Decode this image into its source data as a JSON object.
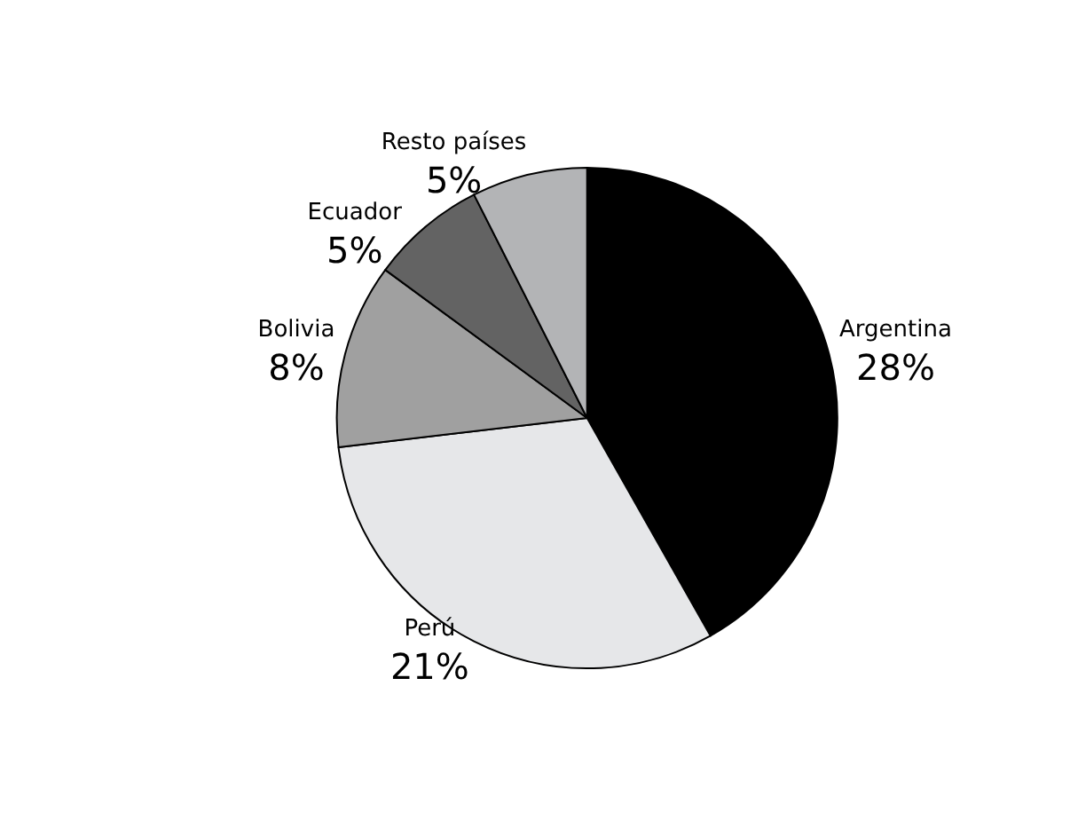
{
  "chart_data": {
    "type": "pie",
    "categories": [
      "Argentina",
      "Perú",
      "Bolivia",
      "Ecuador",
      "Resto países"
    ],
    "values": [
      28,
      21,
      8,
      5,
      5
    ],
    "value_labels": [
      "28%",
      "21%",
      "8%",
      "5%",
      "5%"
    ],
    "colors": [
      "#000000",
      "#e6e7e9",
      "#a0a0a0",
      "#636363",
      "#b3b4b6"
    ],
    "legend": false
  }
}
